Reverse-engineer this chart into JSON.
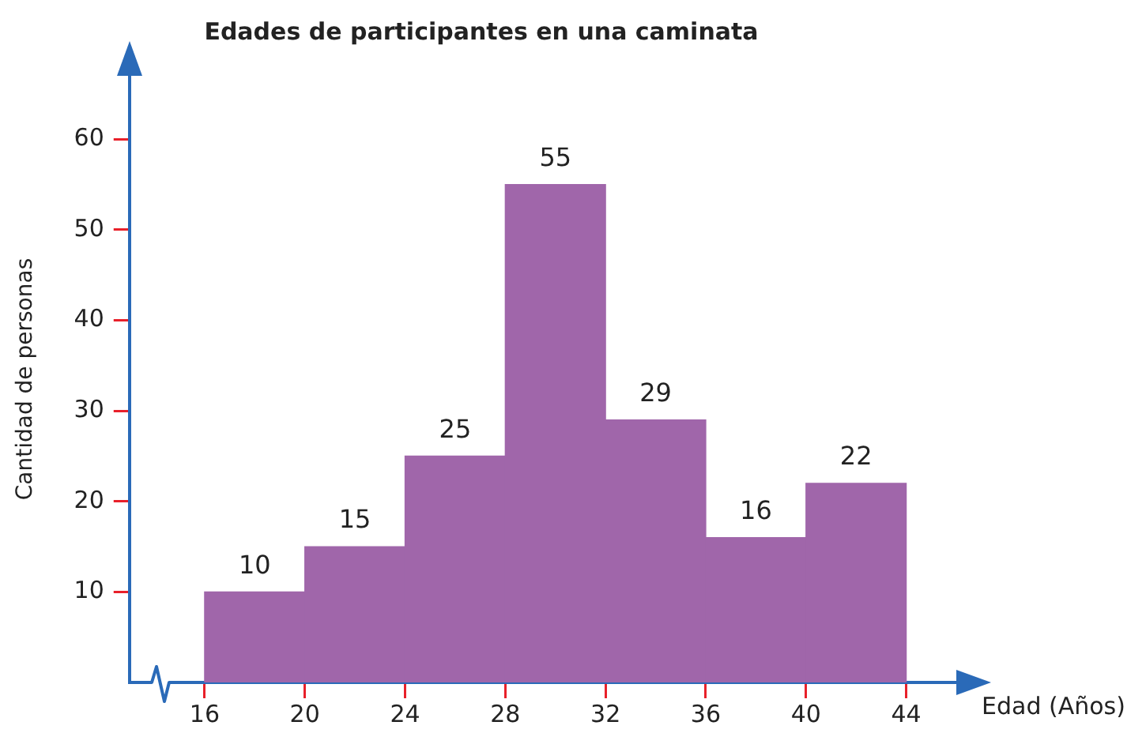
{
  "chart_data": {
    "type": "histogram",
    "title": "Edades de participantes en una caminata",
    "xlabel": "Edad (Años)",
    "ylabel": "Cantidad de personas",
    "bins": [
      16,
      20,
      24,
      28,
      32,
      36,
      40,
      44
    ],
    "values": [
      10,
      15,
      25,
      55,
      29,
      16,
      22
    ],
    "color": "#a066aa",
    "data_labels": true,
    "xlim": [
      13,
      46
    ],
    "xticks": [
      16,
      20,
      24,
      28,
      32,
      36,
      40,
      44
    ],
    "ylim": [
      0,
      67
    ],
    "yticks": [
      10,
      20,
      30,
      40,
      50,
      60
    ],
    "grid": false,
    "legend": false
  }
}
